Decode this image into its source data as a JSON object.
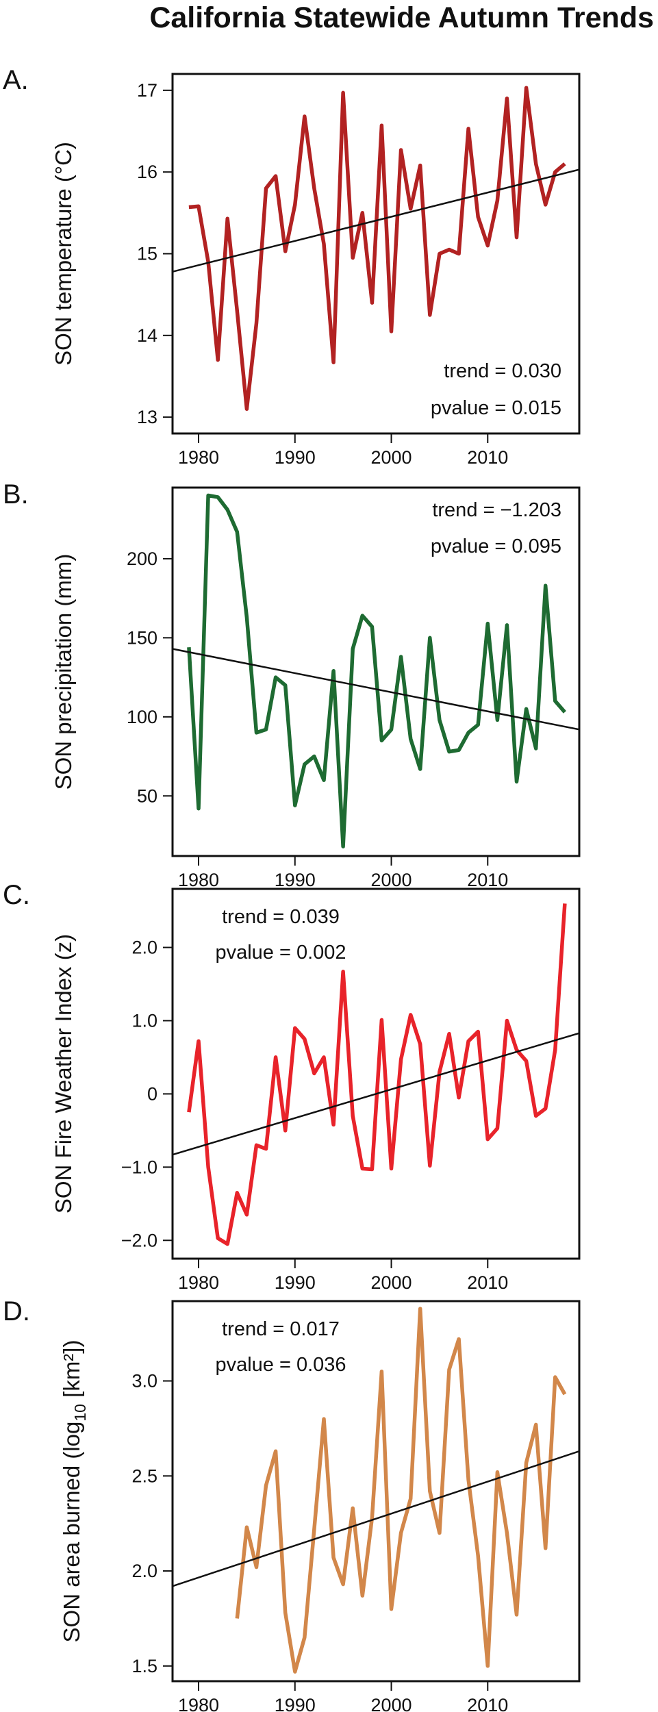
{
  "title": "California Statewide Autumn Trends",
  "chart_data": [
    {
      "type": "line",
      "panel_label": "A.",
      "ylabel": "SON temperature (°C)",
      "ylabel_sub": "",
      "ylabel_unit": "",
      "color": "#b22222",
      "xlim": [
        1977.3,
        2019.5
      ],
      "ylim": [
        12.8,
        17.2
      ],
      "xticks": [
        1980,
        1990,
        2000,
        2010
      ],
      "yticks": [
        13,
        14,
        15,
        16,
        17
      ],
      "ytick_labels": [
        "13",
        "14",
        "15",
        "16",
        "17"
      ],
      "trend_text": "trend = 0.030",
      "pvalue_text": "pvalue = 0.015",
      "annotation_position": "bottom-right",
      "trend_line": {
        "x": [
          1977.3,
          2019.5
        ],
        "y": [
          14.78,
          16.03
        ]
      },
      "x": [
        1979,
        1980,
        1981,
        1982,
        1983,
        1984,
        1985,
        1986,
        1987,
        1988,
        1989,
        1990,
        1991,
        1992,
        1993,
        1994,
        1995,
        1996,
        1997,
        1998,
        1999,
        2000,
        2001,
        2002,
        2003,
        2004,
        2005,
        2006,
        2007,
        2008,
        2009,
        2010,
        2011,
        2012,
        2013,
        2014,
        2015,
        2016,
        2017,
        2018
      ],
      "values": [
        15.57,
        15.58,
        14.9,
        13.7,
        15.43,
        14.3,
        13.1,
        14.15,
        15.8,
        15.95,
        15.03,
        15.6,
        16.68,
        15.8,
        15.12,
        13.67,
        16.97,
        14.95,
        15.5,
        14.4,
        16.57,
        14.05,
        16.27,
        15.55,
        16.08,
        14.25,
        15.0,
        15.05,
        15.0,
        16.53,
        15.45,
        15.1,
        15.65,
        16.9,
        15.2,
        17.03,
        16.1,
        15.6,
        16.0,
        16.1
      ]
    },
    {
      "type": "line",
      "panel_label": "B.",
      "ylabel": "SON precipitation (mm)",
      "ylabel_sub": "",
      "ylabel_unit": "",
      "color": "#1e6b32",
      "xlim": [
        1977.3,
        2019.5
      ],
      "ylim": [
        12,
        245
      ],
      "xticks": [
        1980,
        1990,
        2000,
        2010
      ],
      "yticks": [
        50,
        100,
        150,
        200
      ],
      "ytick_labels": [
        "50",
        "100",
        "150",
        "200"
      ],
      "trend_text": "trend = −1.203",
      "pvalue_text": "pvalue = 0.095",
      "annotation_position": "top-right",
      "trend_line": {
        "x": [
          1977.3,
          2019.5
        ],
        "y": [
          143,
          92
        ]
      },
      "x": [
        1979,
        1980,
        1981,
        1982,
        1983,
        1984,
        1985,
        1986,
        1987,
        1988,
        1989,
        1990,
        1991,
        1992,
        1993,
        1994,
        1995,
        1996,
        1997,
        1998,
        1999,
        2000,
        2001,
        2002,
        2003,
        2004,
        2005,
        2006,
        2007,
        2008,
        2009,
        2010,
        2011,
        2012,
        2013,
        2014,
        2015,
        2016,
        2017,
        2018
      ],
      "values": [
        144,
        42,
        240,
        239,
        231,
        217,
        163,
        90,
        92,
        125,
        120,
        44,
        70,
        75,
        60,
        129,
        18,
        143,
        164,
        157,
        85,
        92,
        138,
        86,
        67,
        150,
        98,
        78,
        79,
        90,
        95,
        159,
        98,
        158,
        59,
        105,
        80,
        183,
        110,
        103
      ]
    },
    {
      "type": "line",
      "panel_label": "C.",
      "ylabel": "SON Fire Weather Index (z)",
      "ylabel_sub": "",
      "ylabel_unit": "",
      "color": "#e8232a",
      "xlim": [
        1977.3,
        2019.5
      ],
      "ylim": [
        -2.25,
        2.8
      ],
      "xticks": [
        1980,
        1990,
        2000,
        2010
      ],
      "yticks": [
        -2.0,
        -1.0,
        0,
        1.0,
        2.0
      ],
      "ytick_labels": [
        "−2.0",
        "−1.0",
        "0",
        "1.0",
        "2.0"
      ],
      "trend_text": "trend = 0.039",
      "pvalue_text": "pvalue = 0.002",
      "annotation_position": "top-left",
      "trend_line": {
        "x": [
          1977.3,
          2019.5
        ],
        "y": [
          -0.83,
          0.83
        ]
      },
      "x": [
        1979,
        1980,
        1981,
        1982,
        1983,
        1984,
        1985,
        1986,
        1987,
        1988,
        1989,
        1990,
        1991,
        1992,
        1993,
        1994,
        1995,
        1996,
        1997,
        1998,
        1999,
        2000,
        2001,
        2002,
        2003,
        2004,
        2005,
        2006,
        2007,
        2008,
        2009,
        2010,
        2011,
        2012,
        2013,
        2014,
        2015,
        2016,
        2017,
        2018
      ],
      "values": [
        -0.25,
        0.72,
        -1.0,
        -1.97,
        -2.05,
        -1.35,
        -1.65,
        -0.7,
        -0.75,
        0.5,
        -0.5,
        0.9,
        0.75,
        0.28,
        0.5,
        -0.42,
        1.67,
        -0.3,
        -1.02,
        -1.03,
        1.01,
        -1.02,
        0.47,
        1.08,
        0.68,
        -0.98,
        0.3,
        0.82,
        -0.05,
        0.72,
        0.85,
        -0.62,
        -0.47,
        1.0,
        0.6,
        0.45,
        -0.3,
        -0.2,
        0.6,
        2.6
      ]
    },
    {
      "type": "line",
      "panel_label": "D.",
      "ylabel": "SON area burned (log",
      "ylabel_sub": "10",
      "ylabel_unit": " [km²])",
      "color": "#d2874a",
      "xlim": [
        1977.3,
        2019.5
      ],
      "ylim": [
        1.42,
        3.42
      ],
      "xticks": [
        1980,
        1990,
        2000,
        2010
      ],
      "yticks": [
        1.5,
        2.0,
        2.5,
        3.0
      ],
      "ytick_labels": [
        "1.5",
        "2.0",
        "2.5",
        "3.0"
      ],
      "trend_text": "trend = 0.017",
      "pvalue_text": "pvalue = 0.036",
      "annotation_position": "top-left",
      "trend_line": {
        "x": [
          1977.3,
          2019.5
        ],
        "y": [
          1.92,
          2.63
        ]
      },
      "x": [
        1984,
        1985,
        1986,
        1987,
        1988,
        1989,
        1990,
        1991,
        1992,
        1993,
        1994,
        1995,
        1996,
        1997,
        1998,
        1999,
        2000,
        2001,
        2002,
        2003,
        2004,
        2005,
        2006,
        2007,
        2008,
        2009,
        2010,
        2011,
        2012,
        2013,
        2014,
        2015,
        2016,
        2017,
        2018
      ],
      "values": [
        1.75,
        2.23,
        2.02,
        2.45,
        2.63,
        1.78,
        1.47,
        1.65,
        2.22,
        2.8,
        2.07,
        1.93,
        2.33,
        1.87,
        2.28,
        3.05,
        1.8,
        2.2,
        2.38,
        3.38,
        2.42,
        2.2,
        3.06,
        3.22,
        2.48,
        2.08,
        1.5,
        2.52,
        2.2,
        1.77,
        2.57,
        2.77,
        2.12,
        3.02,
        2.93
      ]
    }
  ]
}
